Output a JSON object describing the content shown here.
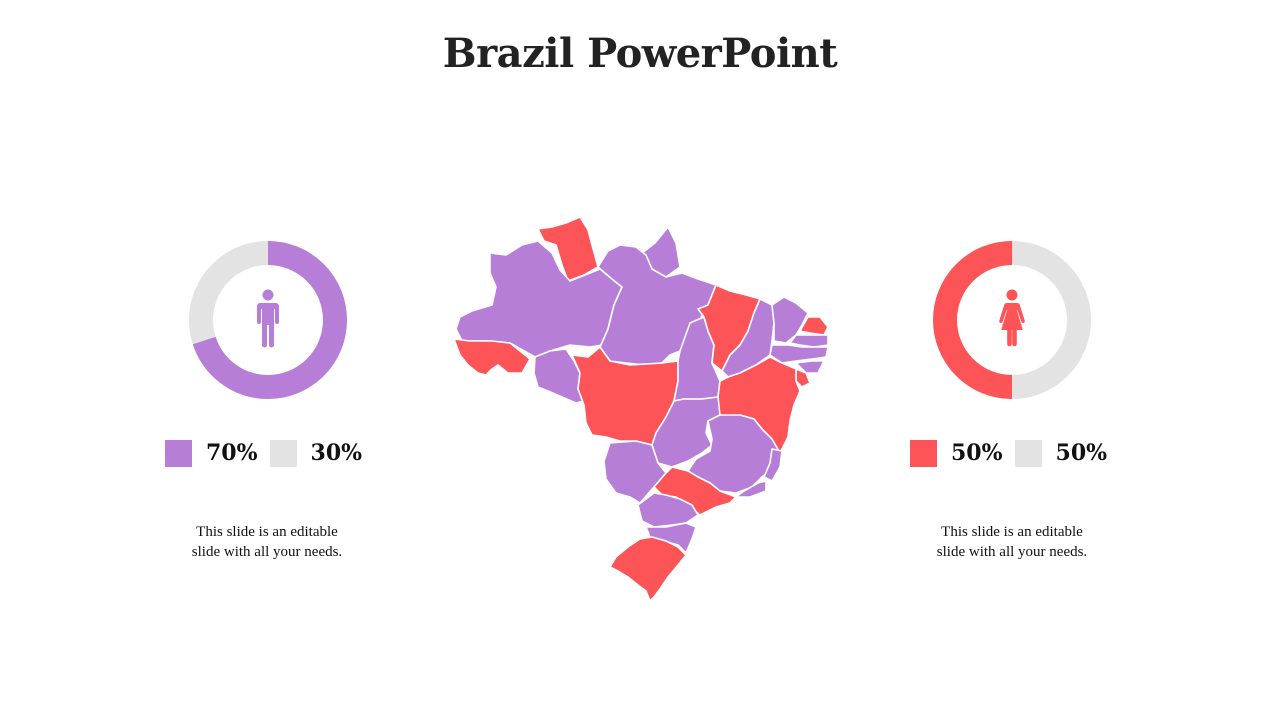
{
  "title": "Brazil PowerPoint",
  "colors": {
    "purple": "#b77ed8",
    "red": "#fc5457",
    "gray": "#e3e3e3",
    "title": "#222222"
  },
  "male": {
    "icon": "male-person-icon",
    "percent_primary": 70,
    "percent_secondary": 30,
    "label_primary": "70%",
    "label_secondary": "30%",
    "description_line1": "This slide is an editable",
    "description_line2": "slide with all your needs."
  },
  "female": {
    "icon": "female-person-icon",
    "percent_primary": 50,
    "percent_secondary": 50,
    "label_primary": "50%",
    "label_secondary": "50%",
    "description_line1": "This slide is an editable",
    "description_line2": "slide with all your needs."
  },
  "map": {
    "icon": "brazil-map",
    "regions": [
      {
        "id": "roraima",
        "color": "red"
      },
      {
        "id": "amapa",
        "color": "purple"
      },
      {
        "id": "amazonas",
        "color": "purple"
      },
      {
        "id": "para",
        "color": "purple"
      },
      {
        "id": "acre",
        "color": "red"
      },
      {
        "id": "rondonia",
        "color": "purple"
      },
      {
        "id": "mato-grosso",
        "color": "red"
      },
      {
        "id": "tocantins",
        "color": "purple"
      },
      {
        "id": "maranhao",
        "color": "red"
      },
      {
        "id": "piaui",
        "color": "purple"
      },
      {
        "id": "ceara",
        "color": "purple"
      },
      {
        "id": "rio-grande-do-norte",
        "color": "red"
      },
      {
        "id": "paraiba",
        "color": "purple"
      },
      {
        "id": "pernambuco",
        "color": "purple"
      },
      {
        "id": "alagoas",
        "color": "purple"
      },
      {
        "id": "sergipe",
        "color": "red"
      },
      {
        "id": "bahia",
        "color": "red"
      },
      {
        "id": "goias",
        "color": "purple"
      },
      {
        "id": "minas-gerais",
        "color": "purple"
      },
      {
        "id": "espirito-santo",
        "color": "purple"
      },
      {
        "id": "rio-de-janeiro",
        "color": "purple"
      },
      {
        "id": "mato-grosso-do-sul",
        "color": "purple"
      },
      {
        "id": "sao-paulo",
        "color": "red"
      },
      {
        "id": "parana",
        "color": "purple"
      },
      {
        "id": "santa-catarina",
        "color": "purple"
      },
      {
        "id": "rio-grande-do-sul",
        "color": "red"
      }
    ]
  }
}
